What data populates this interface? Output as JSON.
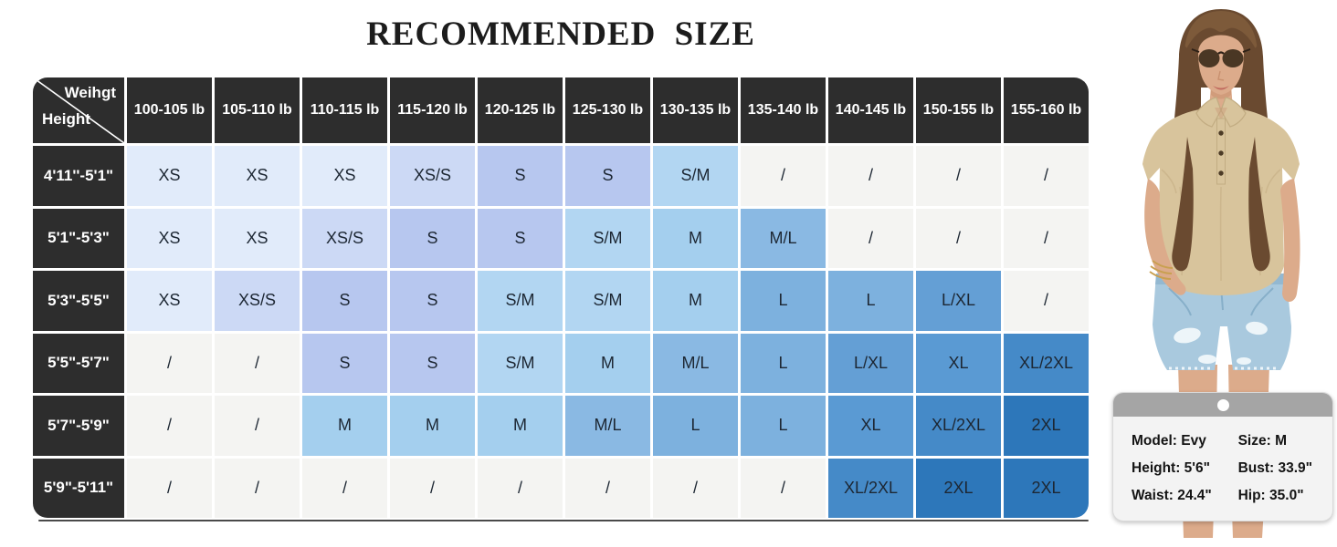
{
  "chart_data": {
    "type": "table",
    "title": "RECOMMENDED SIZE",
    "corner": {
      "top": "Weihgt",
      "bottom": "Height"
    },
    "columns": [
      "100-105 lb",
      "105-110 lb",
      "110-115 lb",
      "115-120 lb",
      "120-125 lb",
      "125-130 lb",
      "130-135 lb",
      "135-140 lb",
      "140-145 lb",
      "150-155 lb",
      "155-160 lb"
    ],
    "rows": [
      {
        "height": "4'11''-5'1\"",
        "cells": [
          "XS",
          "XS",
          "XS",
          "XS/S",
          "S",
          "S",
          "S/M",
          "/",
          "/",
          "/",
          "/"
        ]
      },
      {
        "height": "5'1\"-5'3\"",
        "cells": [
          "XS",
          "XS",
          "XS/S",
          "S",
          "S",
          "S/M",
          "M",
          "M/L",
          "/",
          "/",
          "/"
        ]
      },
      {
        "height": "5'3\"-5'5\"",
        "cells": [
          "XS",
          "XS/S",
          "S",
          "S",
          "S/M",
          "S/M",
          "M",
          "L",
          "L",
          "L/XL",
          "/"
        ]
      },
      {
        "height": "5'5\"-5'7\"",
        "cells": [
          "/",
          "/",
          "S",
          "S",
          "S/M",
          "M",
          "M/L",
          "L",
          "L/XL",
          "XL",
          "XL/2XL"
        ]
      },
      {
        "height": "5'7\"-5'9\"",
        "cells": [
          "/",
          "/",
          "M",
          "M",
          "M",
          "M/L",
          "L",
          "L",
          "XL",
          "XL/2XL",
          "2XL"
        ]
      },
      {
        "height": "5'9\"-5'11\"",
        "cells": [
          "/",
          "/",
          "/",
          "/",
          "/",
          "/",
          "/",
          "/",
          "XL/2XL",
          "2XL",
          "2XL"
        ]
      }
    ],
    "empty_marker": "/"
  },
  "size_colors": {
    "XS": "#e1ebfa",
    "XS/S": "#ccd9f5",
    "S": "#b7c7ef",
    "S/M": "#b2d6f2",
    "M": "#a4cfee",
    "M/L": "#8ab9e3",
    "L": "#7db1de",
    "L/XL": "#649fd5",
    "XL": "#5a9ad3",
    "XL/2XL": "#458ac8",
    "2XL": "#2d77ba",
    "/": "#f4f4f2"
  },
  "table_header_bg": "#2d2d2d",
  "model_card": {
    "left": [
      "Model: Evy",
      "Height: 5'6\"",
      "Waist: 24.4\""
    ],
    "right": [
      "Size: M",
      "Bust: 33.9\"",
      "Hip: 35.0\""
    ]
  },
  "photo": {
    "hair_dark": "#6a4a30",
    "hair_light": "#7d5a3a",
    "skin": "#dcab8b",
    "skin_shadow": "#c8906f",
    "lips": "#c06a5e",
    "glasses": "#41301f",
    "top": "#d8c49c",
    "top_shadow": "#c2ac82",
    "denim": "#a9c9de",
    "denim_shadow": "#87afc9",
    "distress": "#edf5f9",
    "bracelet": "#c9a050"
  }
}
